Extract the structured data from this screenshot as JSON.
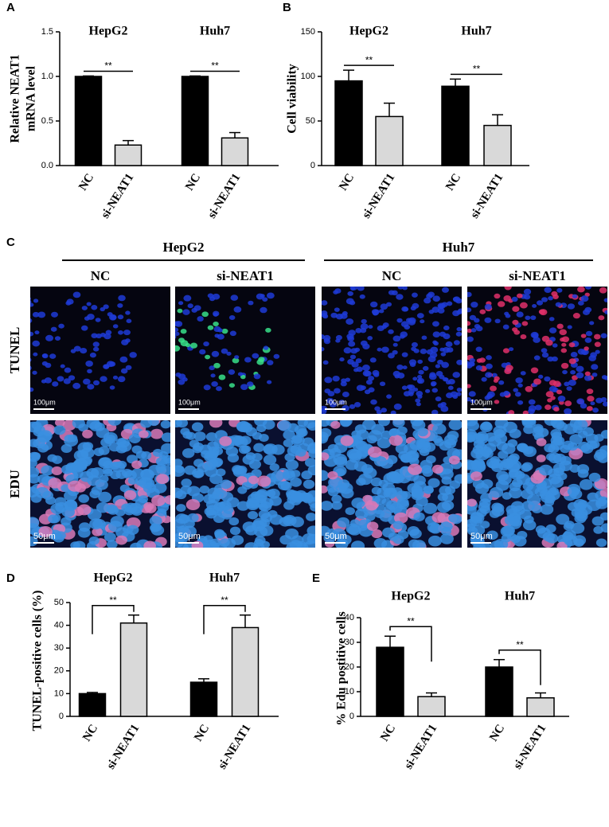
{
  "chart_data": [
    {
      "type": "bar",
      "panel": "A",
      "ylabel": [
        "Relative NEAT1",
        "mRNA level"
      ],
      "groups": [
        "HepG2",
        "Huh7"
      ],
      "categories": [
        "NC",
        "si-NEAT1",
        "NC",
        "si-NEAT1"
      ],
      "values": [
        1.0,
        0.23,
        1.0,
        0.31
      ],
      "errors": [
        0.005,
        0.05,
        0.005,
        0.06
      ],
      "colors": [
        "#000000",
        "#d9d9d9",
        "#000000",
        "#d9d9d9"
      ],
      "significance": [
        "**",
        "**"
      ],
      "ylim": [
        0,
        1.5
      ],
      "yticks": [
        {
          "value": 0,
          "label": "0.0"
        },
        0.5,
        {
          "value": 1,
          "label": "1.0"
        },
        1.5
      ]
    },
    {
      "type": "bar",
      "panel": "B",
      "ylabel": [
        "Cell viability"
      ],
      "groups": [
        "HepG2",
        "Huh7"
      ],
      "categories": [
        "NC",
        "si-NEAT1",
        "NC",
        "si-NEAT1"
      ],
      "values": [
        95,
        55,
        89,
        45
      ],
      "errors": [
        12,
        15,
        8,
        12
      ],
      "colors": [
        "#000000",
        "#d9d9d9",
        "#000000",
        "#d9d9d9"
      ],
      "significance": [
        "**",
        "**"
      ],
      "ylim": [
        0,
        150
      ],
      "yticks": [
        0,
        50,
        100,
        150
      ]
    },
    {
      "type": "bar",
      "panel": "D",
      "ylabel": [
        "TUNEL-positive cells (%)"
      ],
      "groups": [
        "HepG2",
        "Huh7"
      ],
      "categories": [
        "NC",
        "si-NEAT1",
        "NC",
        "si-NEAT1"
      ],
      "values": [
        10,
        41,
        15,
        39
      ],
      "errors": [
        0.5,
        3.5,
        1.5,
        5.5
      ],
      "colors": [
        "#000000",
        "#d9d9d9",
        "#000000",
        "#d9d9d9"
      ],
      "significance": [
        "**",
        "**"
      ],
      "ylim": [
        0,
        50
      ],
      "yticks": [
        0,
        10,
        20,
        30,
        40,
        50
      ]
    },
    {
      "type": "bar",
      "panel": "E",
      "ylabel": [
        "% Edu postitive cells"
      ],
      "groups": [
        "HepG2",
        "Huh7"
      ],
      "categories": [
        "NC",
        "si-NEAT1",
        "NC",
        "si-NEAT1"
      ],
      "values": [
        28,
        8,
        20,
        7.5
      ],
      "errors": [
        4.5,
        1.5,
        3,
        2
      ],
      "colors": [
        "#000000",
        "#d9d9d9",
        "#000000",
        "#d9d9d9"
      ],
      "significance": [
        "**",
        "**"
      ],
      "ylim": [
        0,
        40
      ],
      "yticks": [
        0,
        10,
        20,
        30,
        40
      ]
    }
  ],
  "panel_c": {
    "label": "C",
    "cell_lines": [
      "HepG2",
      "Huh7"
    ],
    "columns": [
      "NC",
      "si-NEAT1",
      "NC",
      "si-NEAT1"
    ],
    "rows": [
      {
        "label": "TUNEL",
        "scale_bar": "100μm"
      },
      {
        "label": "EDU",
        "scale_bar": "50μm"
      }
    ]
  }
}
